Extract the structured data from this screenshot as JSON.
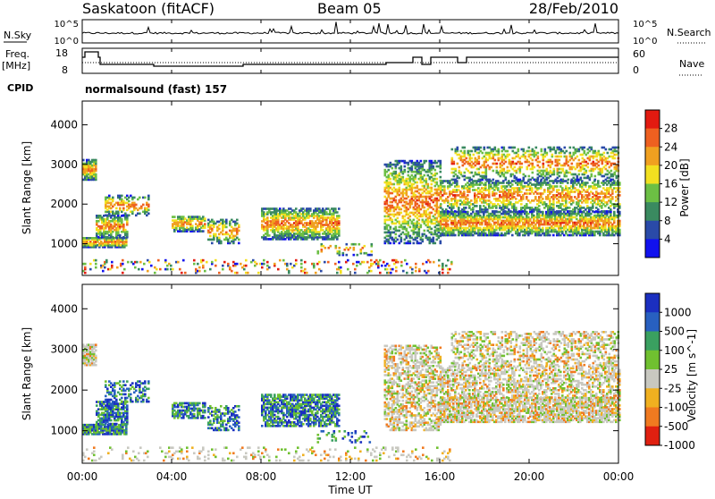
{
  "header": {
    "station": "Saskatoon (fitACF)",
    "beam": "Beam 05",
    "date": "28/Feb/2010"
  },
  "noise_panel": {
    "left_label": "N.Sky",
    "left_ticks": [
      "10^5",
      "10^0"
    ],
    "right_label": "N.Search",
    "right_ticks": [
      "10^5",
      "10^0"
    ]
  },
  "freq_panel": {
    "left_label_line1": "Freq.",
    "left_label_line2": "[MHz]",
    "left_ticks": [
      "18",
      "8"
    ],
    "right_label": "Nave",
    "right_ticks": [
      "60",
      "0"
    ],
    "cpid_label": "CPID",
    "cpid_text": "normalsound (fast) 157"
  },
  "colors": {
    "power_scale": [
      "#1111ee",
      "#2a4aa8",
      "#3a8a60",
      "#6cbf44",
      "#f2e020",
      "#f0a020",
      "#ee6020",
      "#e21a10"
    ],
    "velocity_scale": [
      "#1b2fc0",
      "#2860c0",
      "#3aa060",
      "#70c030",
      "#c8c8c0",
      "#f0b020",
      "#f07a20",
      "#e02010"
    ]
  },
  "chart_data": [
    {
      "type": "heatmap",
      "name_hint": "power",
      "ylabel": "Slant Range [km]",
      "yticks": [
        1000,
        2000,
        3000,
        4000
      ],
      "ylim": [
        200,
        4600
      ],
      "xlim": [
        0,
        24
      ],
      "colorbar_label": "Power [dB]",
      "colorbar_ticks": [
        "4",
        "8",
        "12",
        "16",
        "20",
        "24",
        "28"
      ],
      "colorbar_range": [
        0,
        32
      ]
    },
    {
      "type": "heatmap",
      "name_hint": "velocity",
      "xlabel": "Time UT",
      "xticks": [
        "00:00",
        "04:00",
        "08:00",
        "12:00",
        "16:00",
        "20:00",
        "00:00"
      ],
      "xtick_values": [
        0,
        4,
        8,
        12,
        16,
        20,
        24
      ],
      "ylabel": "Slant Range [km]",
      "yticks": [
        1000,
        2000,
        3000,
        4000
      ],
      "ylim": [
        200,
        4600
      ],
      "xlim": [
        0,
        24
      ],
      "colorbar_label": "Velocity [m s^-1]",
      "colorbar_ticks": [
        "1000",
        "500",
        "100",
        "25",
        "-25",
        "-100",
        "-500",
        "-1000"
      ]
    }
  ]
}
